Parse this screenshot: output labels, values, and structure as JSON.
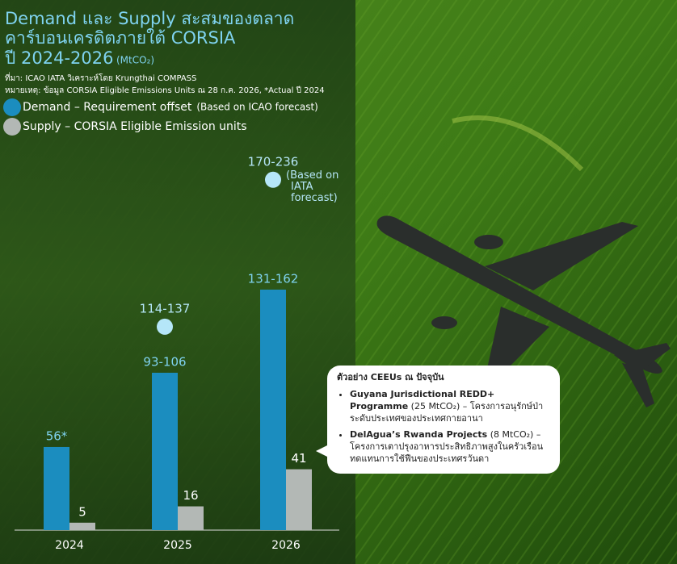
{
  "chart_data": {
    "type": "bar",
    "title": "Demand และ Supply สะสมของตลาด",
    "title_line2": "คาร์บอนเครดิตภายใต้ CORSIA",
    "title_line3": "ปี 2024-2026",
    "unit": "(MtCO₂)",
    "source": "ที่มา: ICAO IATA วิเคราะห์โดย Krungthai COMPASS",
    "note": "หมายเหตุ: ข้อมูล CORSIA Eligible Emissions Units ณ 28 ก.ค. 2026, *Actual ปี 2024",
    "categories": [
      "2024",
      "2025",
      "2026"
    ],
    "ylim": [
      0,
      250
    ],
    "series": [
      {
        "name": "Demand – Requirement offset",
        "name_note": "(Based on ICAO forecast)",
        "color": "#1b8dbf",
        "low": [
          56,
          93,
          131
        ],
        "high": [
          56,
          106,
          162
        ],
        "value_labels": [
          "56*",
          "93-106",
          "131-162"
        ]
      },
      {
        "name": "Supply – CORSIA Eligible Emission units",
        "color": "#b3b8b5",
        "values": [
          5,
          16,
          41
        ]
      }
    ],
    "iata": {
      "color": "#b5e6f8",
      "categories": [
        "2025",
        "2026"
      ],
      "low": [
        114,
        170
      ],
      "high": [
        137,
        236
      ],
      "value_labels": [
        "114-137",
        "170-236"
      ],
      "annotation": "(Based on IATA forecast)"
    },
    "callout": {
      "title": "ตัวอย่าง CEEUs ณ ปัจจุบัน",
      "items": [
        {
          "name": "Guyana Jurisdictional REDD+ Programme",
          "text": "(25 MtCO₂) – โครงการอนุรักษ์ป่าระดับประเทศของประเทศกายอานา"
        },
        {
          "name": "DelAgua’s Rwanda Projects",
          "text": "(8 MtCO₂) – โครงการเตาปรุงอาหารประสิทธิภาพสูงในครัวเรือนทดแทนการใช้ฟืนของประเทศรวันดา"
        }
      ]
    }
  }
}
